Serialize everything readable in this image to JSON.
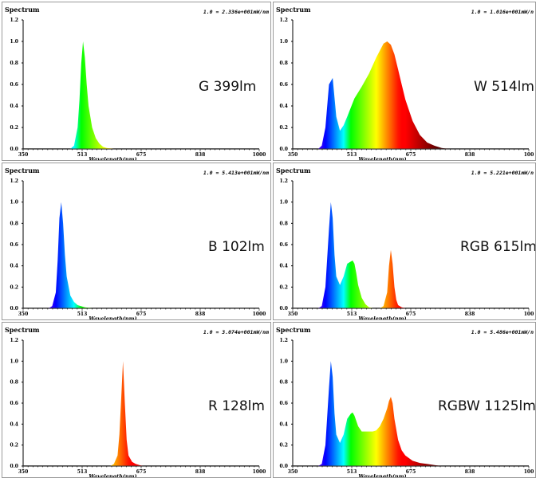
{
  "chart_data": [
    {
      "type": "area",
      "title": "Spectrum",
      "scale_text": "1.0 = 2.336e+001mW/nm",
      "label": "G 399lm",
      "xlabel": "Wavelength(nm)",
      "xlim": [
        350,
        1000
      ],
      "ylim": [
        0,
        1.2
      ],
      "xticks": [
        "350",
        "513",
        "675",
        "838",
        "1000"
      ],
      "yticks": [
        "0.0",
        "0.2",
        "0.4",
        "0.6",
        "0.8",
        "1.0",
        "1.2"
      ],
      "grid": false,
      "series": [
        {
          "x": [
            480,
            490,
            500,
            505,
            510,
            515,
            520,
            525,
            530,
            540,
            550,
            560,
            570,
            580,
            600
          ],
          "values": [
            0.0,
            0.03,
            0.2,
            0.45,
            0.8,
            1.0,
            0.85,
            0.6,
            0.4,
            0.2,
            0.1,
            0.05,
            0.02,
            0.01,
            0.0
          ]
        }
      ]
    },
    {
      "type": "area",
      "title": "Spectrum",
      "scale_text": "1.0 = 1.016e+001mW/n",
      "label": "W 514lm",
      "xlabel": "Wavelength(nm)",
      "xlim": [
        350,
        1000
      ],
      "ylim": [
        0,
        1.2
      ],
      "xticks": [
        "350",
        "513",
        "675",
        "838",
        "100"
      ],
      "yticks": [
        "0.0",
        "0.2",
        "0.4",
        "0.6",
        "0.8",
        "1.0",
        "1.2"
      ],
      "grid": false,
      "series": [
        {
          "x": [
            420,
            430,
            440,
            450,
            460,
            470,
            480,
            490,
            500,
            520,
            540,
            560,
            580,
            600,
            610,
            620,
            630,
            640,
            650,
            660,
            680,
            700,
            720,
            740,
            760,
            780
          ],
          "values": [
            0.0,
            0.03,
            0.2,
            0.6,
            0.66,
            0.3,
            0.17,
            0.22,
            0.3,
            0.47,
            0.58,
            0.7,
            0.85,
            0.98,
            1.0,
            0.97,
            0.88,
            0.74,
            0.6,
            0.46,
            0.26,
            0.13,
            0.06,
            0.03,
            0.01,
            0.0
          ]
        }
      ]
    },
    {
      "type": "area",
      "title": "Spectrum",
      "scale_text": "1.0 = 5.413e+001mW/nm",
      "label": "B 102lm",
      "xlabel": "Wavelength(nm)",
      "xlim": [
        350,
        1000
      ],
      "ylim": [
        0,
        1.2
      ],
      "xticks": [
        "350",
        "513",
        "675",
        "838",
        "1000"
      ],
      "yticks": [
        "0.0",
        "0.2",
        "0.4",
        "0.6",
        "0.8",
        "1.0",
        "1.2"
      ],
      "grid": false,
      "series": [
        {
          "x": [
            420,
            430,
            440,
            445,
            450,
            455,
            460,
            465,
            470,
            480,
            490,
            500,
            520,
            540
          ],
          "values": [
            0.0,
            0.02,
            0.15,
            0.45,
            0.85,
            1.0,
            0.8,
            0.5,
            0.3,
            0.12,
            0.06,
            0.03,
            0.01,
            0.0
          ]
        }
      ]
    },
    {
      "type": "area",
      "title": "Spectrum",
      "scale_text": "1.0 = 5.221e+001mW/n",
      "label": "RGB 615lm",
      "xlabel": "Wavelength(nm)",
      "xlim": [
        350,
        1000
      ],
      "ylim": [
        0,
        1.2
      ],
      "xticks": [
        "350",
        "513",
        "675",
        "838",
        "100"
      ],
      "yticks": [
        "0.0",
        "0.2",
        "0.4",
        "0.6",
        "0.8",
        "1.0",
        "1.2"
      ],
      "grid": false,
      "series": [
        {
          "x": [
            420,
            430,
            440,
            450,
            455,
            460,
            465,
            470,
            480,
            490,
            500,
            510,
            515,
            520,
            525,
            530,
            540,
            550,
            560,
            570,
            580,
            590,
            600,
            610,
            615,
            620,
            625,
            630,
            635,
            640,
            650,
            660
          ],
          "values": [
            0.0,
            0.02,
            0.2,
            0.75,
            1.0,
            0.85,
            0.5,
            0.3,
            0.22,
            0.3,
            0.42,
            0.44,
            0.45,
            0.42,
            0.33,
            0.22,
            0.1,
            0.04,
            0.01,
            0.0,
            0.0,
            0.0,
            0.02,
            0.15,
            0.4,
            0.55,
            0.42,
            0.2,
            0.08,
            0.03,
            0.01,
            0.0
          ]
        }
      ]
    },
    {
      "type": "area",
      "title": "Spectrum",
      "scale_text": "1.0 = 3.074e+001mW/nm",
      "label": "R 128lm",
      "xlabel": "Wavelength(nm)",
      "xlim": [
        350,
        1000
      ],
      "ylim": [
        0,
        1.2
      ],
      "xticks": [
        "350",
        "513",
        "675",
        "838",
        "1000"
      ],
      "yticks": [
        "0.0",
        "0.2",
        "0.4",
        "0.6",
        "0.8",
        "1.0",
        "1.2"
      ],
      "grid": false,
      "series": [
        {
          "x": [
            590,
            600,
            610,
            615,
            620,
            625,
            630,
            635,
            640,
            650,
            660,
            670,
            680
          ],
          "values": [
            0.0,
            0.02,
            0.1,
            0.3,
            0.65,
            1.0,
            0.6,
            0.25,
            0.1,
            0.04,
            0.02,
            0.01,
            0.0
          ]
        }
      ]
    },
    {
      "type": "area",
      "title": "Spectrum",
      "scale_text": "1.0 = 5.486e+001mW/n",
      "label": "RGBW 1125lm",
      "xlabel": "Wavelength(nm)",
      "xlim": [
        350,
        1000
      ],
      "ylim": [
        0,
        1.2
      ],
      "xticks": [
        "350",
        "513",
        "675",
        "838",
        "100"
      ],
      "yticks": [
        "0.0",
        "0.2",
        "0.4",
        "0.6",
        "0.8",
        "1.0",
        "1.2"
      ],
      "grid": false,
      "series": [
        {
          "x": [
            420,
            430,
            440,
            450,
            455,
            460,
            465,
            470,
            480,
            490,
            500,
            510,
            515,
            520,
            530,
            540,
            550,
            560,
            570,
            580,
            590,
            600,
            610,
            615,
            620,
            625,
            630,
            640,
            650,
            660,
            680,
            700,
            720,
            740,
            760
          ],
          "values": [
            0.0,
            0.02,
            0.2,
            0.75,
            1.0,
            0.85,
            0.5,
            0.3,
            0.22,
            0.3,
            0.45,
            0.5,
            0.51,
            0.48,
            0.38,
            0.33,
            0.33,
            0.33,
            0.33,
            0.34,
            0.38,
            0.45,
            0.55,
            0.62,
            0.66,
            0.6,
            0.45,
            0.25,
            0.15,
            0.1,
            0.05,
            0.03,
            0.02,
            0.01,
            0.0
          ]
        }
      ]
    }
  ]
}
